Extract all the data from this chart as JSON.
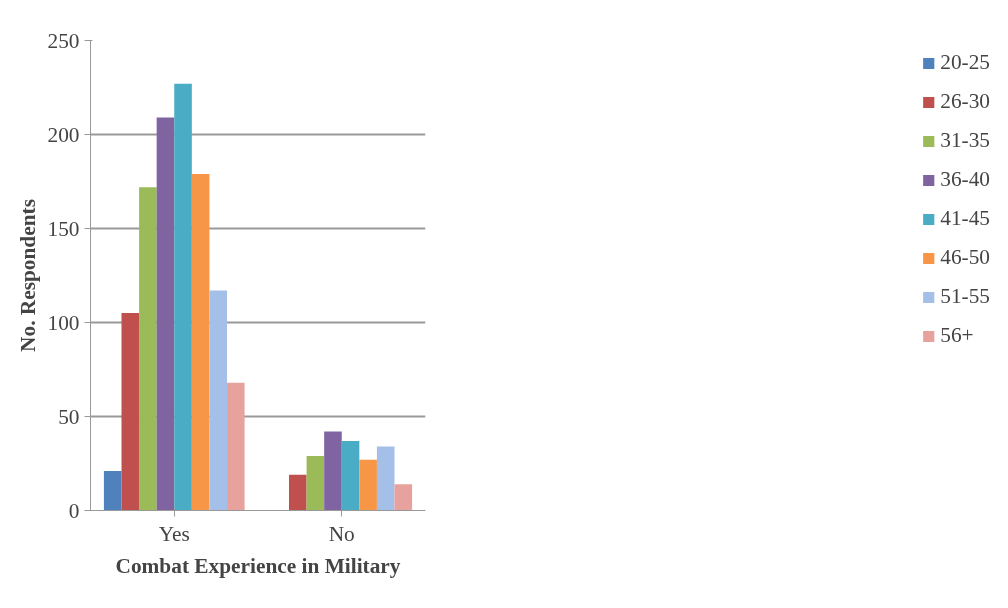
{
  "chart_data": {
    "type": "bar",
    "xlabel": "Combat Experience in Military",
    "ylabel": "No. Respondents",
    "categories": [
      "Yes",
      "No"
    ],
    "ylim": [
      0,
      250
    ],
    "yticks": [
      0,
      50,
      100,
      150,
      200,
      250
    ],
    "grid": "y",
    "legend": "right",
    "series": [
      {
        "name": "20-25",
        "color": "#4f81bd",
        "values": [
          21,
          0
        ]
      },
      {
        "name": "26-30",
        "color": "#c0504d",
        "values": [
          105,
          19
        ]
      },
      {
        "name": "31-35",
        "color": "#9bbb59",
        "values": [
          172,
          29
        ]
      },
      {
        "name": "36-40",
        "color": "#8064a2",
        "values": [
          209,
          42
        ]
      },
      {
        "name": "41-45",
        "color": "#4bacc6",
        "values": [
          227,
          37
        ]
      },
      {
        "name": "46-50",
        "color": "#f79646",
        "values": [
          179,
          27
        ]
      },
      {
        "name": "51-55",
        "color": "#a5c0e8",
        "values": [
          117,
          34
        ]
      },
      {
        "name": "56+",
        "color": "#e8a29e",
        "values": [
          68,
          14
        ]
      }
    ]
  }
}
